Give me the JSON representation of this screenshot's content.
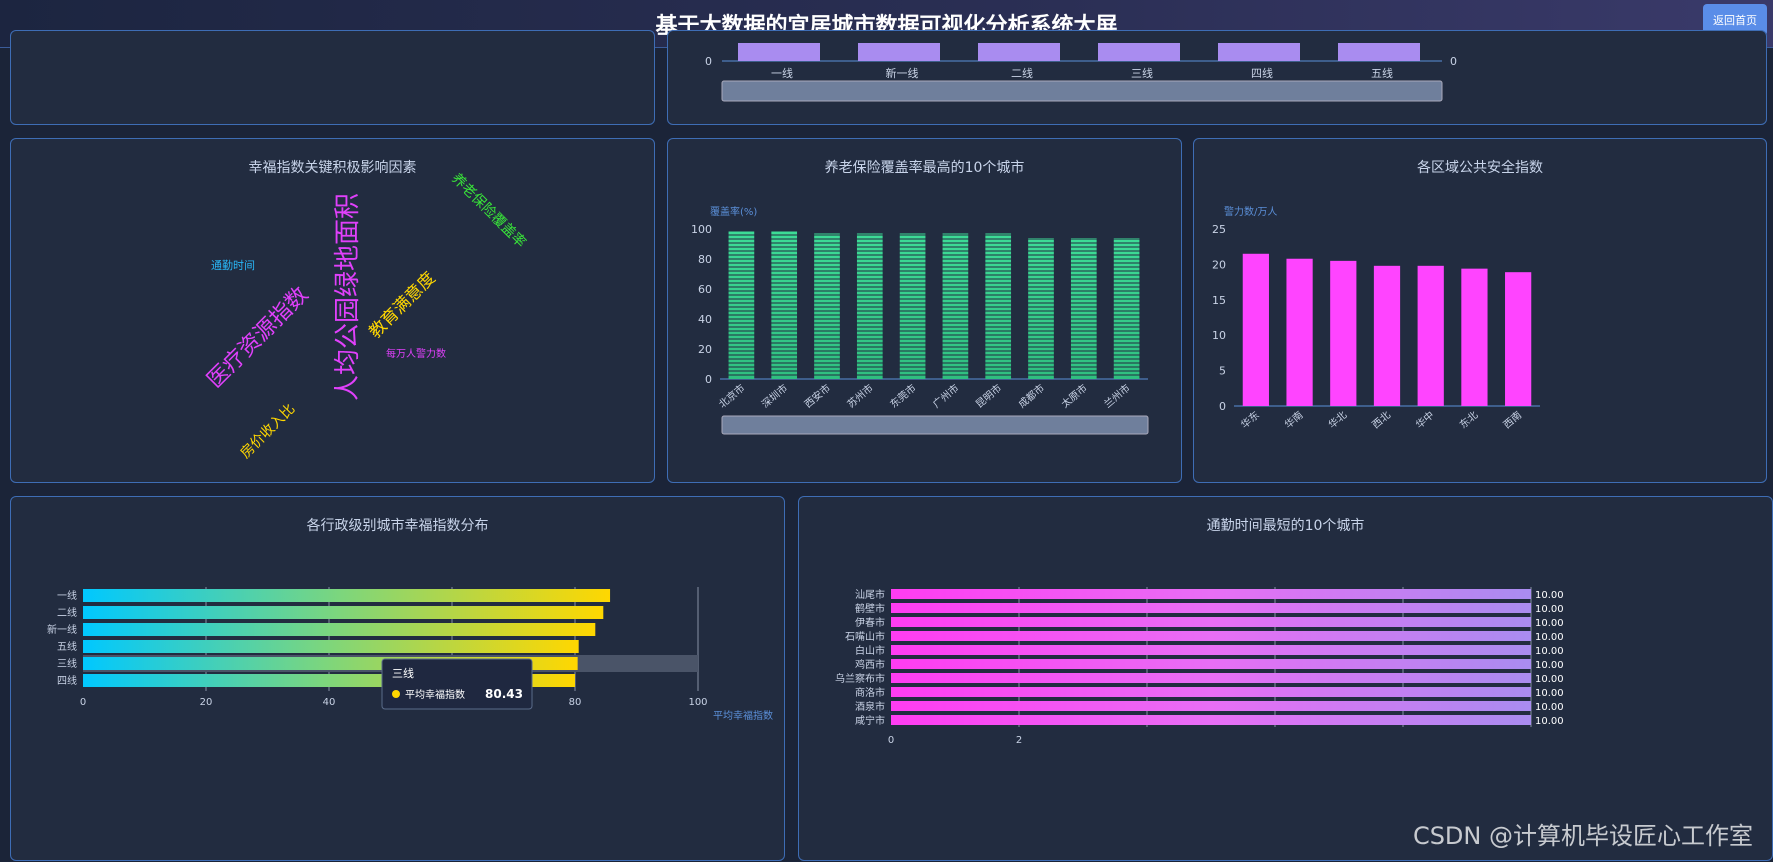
{
  "header": {
    "title": "基于大数据的宜居城市数据可视化分析系统大屏",
    "back_label": "返回首页"
  },
  "top_chart": {
    "categories": [
      "一线",
      "新一线",
      "二线",
      "三线",
      "四线",
      "五线"
    ],
    "left_axis_zero": "0",
    "right_axis_zero": "0",
    "bar_color": "#a98cf0"
  },
  "wordcloud": {
    "title": "幸福指数关键积极影响因素",
    "words": [
      {
        "text": "人均公园绿地面积",
        "color": "#e040fb"
      },
      {
        "text": "医疗资源指数",
        "color": "#e040fb"
      },
      {
        "text": "教育满意度",
        "color": "#ffd700"
      },
      {
        "text": "养老保险覆盖率",
        "color": "#39e639"
      },
      {
        "text": "房价收入比",
        "color": "#ffd700"
      },
      {
        "text": "通勤时间",
        "color": "#29b6f6"
      },
      {
        "text": "每万人警力数",
        "color": "#e040fb"
      }
    ]
  },
  "chart_data": [
    {
      "type": "bar",
      "title": "养老保险覆盖率最高的10个城市",
      "ylabel": "覆盖率(%)",
      "ylim": [
        0,
        100
      ],
      "yticks": [
        "0",
        "20",
        "40",
        "60",
        "80",
        "100"
      ],
      "categories": [
        "北京市",
        "深圳市",
        "西安市",
        "苏州市",
        "东莞市",
        "广州市",
        "昆明市",
        "成都市",
        "太原市",
        "兰州市"
      ],
      "values": [
        99,
        99,
        97,
        97,
        97,
        97,
        97,
        94,
        94,
        94
      ],
      "color": "#3ddc97"
    },
    {
      "type": "bar",
      "title": "各区域公共安全指数",
      "ylabel": "警力数/万人",
      "ylim": [
        0,
        25
      ],
      "yticks": [
        "0",
        "5",
        "10",
        "15",
        "20",
        "25"
      ],
      "categories": [
        "华东",
        "华南",
        "华北",
        "西北",
        "华中",
        "东北",
        "西南"
      ],
      "values": [
        21.5,
        20.8,
        20.5,
        19.8,
        19.8,
        19.4,
        18.9
      ],
      "color": "#ff44ff"
    },
    {
      "type": "bar",
      "orientation": "horizontal",
      "title": "各行政级别城市幸福指数分布",
      "series_name": "平均幸福指数",
      "xlim": [
        0,
        100
      ],
      "xticks": [
        "0",
        "20",
        "40",
        "60",
        "80",
        "100"
      ],
      "categories": [
        "一线",
        "二线",
        "新一线",
        "五线",
        "三线",
        "四线"
      ],
      "values": [
        85.7,
        84.6,
        83.3,
        80.6,
        80.43,
        80.0
      ],
      "tooltip": {
        "category": "三线",
        "label": "平均幸福指数",
        "value": "80.43"
      }
    },
    {
      "type": "bar",
      "orientation": "horizontal",
      "title": "通勤时间最短的10个城市",
      "xlim": [
        0,
        10
      ],
      "xticks": [
        "0",
        "2"
      ],
      "categories": [
        "汕尾市",
        "鹤壁市",
        "伊春市",
        "石嘴山市",
        "白山市",
        "鸡西市",
        "乌兰察布市",
        "商洛市",
        "酒泉市",
        "咸宁市"
      ],
      "values": [
        10,
        10,
        10,
        10,
        10,
        10,
        10,
        10,
        10,
        10
      ],
      "value_labels": [
        "10.00",
        "10.00",
        "10.00",
        "10.00",
        "10.00",
        "10.00",
        "10.00",
        "10.00",
        "10.00",
        "10.00"
      ]
    }
  ],
  "watermark": "CSDN @计算机毕设匠心工作室"
}
